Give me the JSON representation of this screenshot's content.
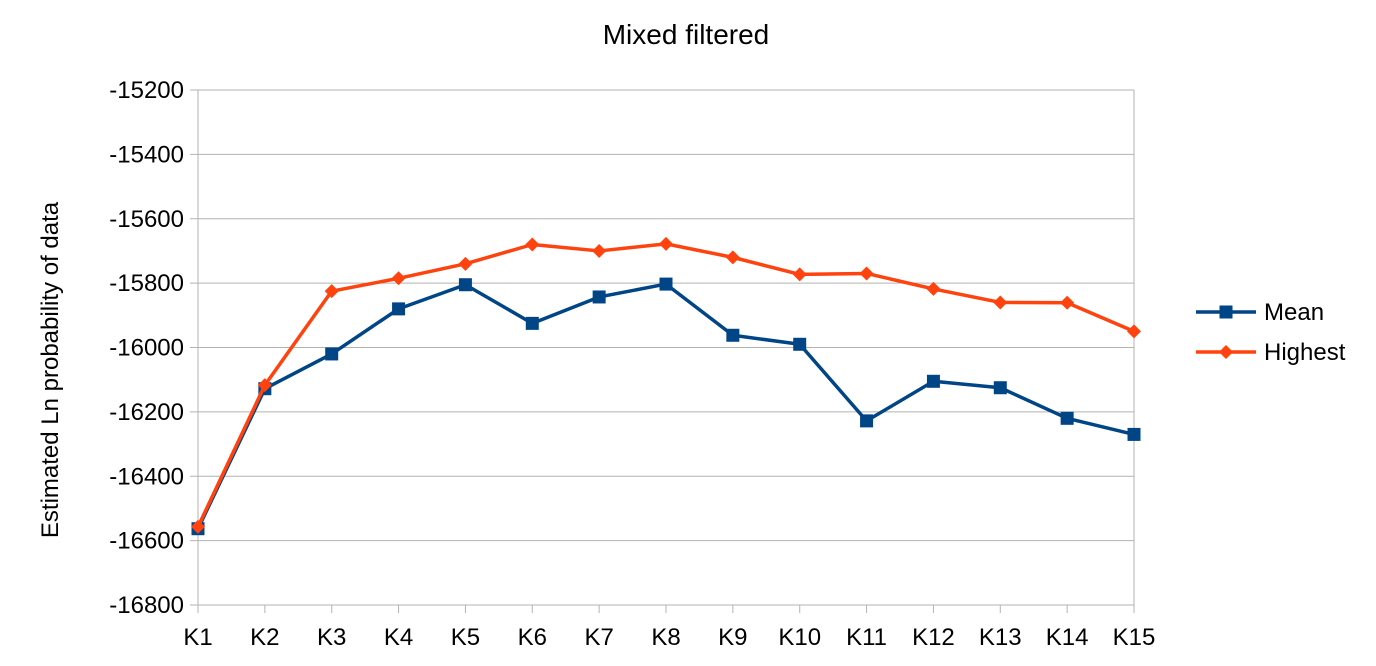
{
  "chart_data": {
    "type": "line",
    "title": "Mixed filtered",
    "xlabel": "",
    "ylabel": "Estimated Ln probability of data",
    "categories": [
      "K1",
      "K2",
      "K3",
      "K4",
      "K5",
      "K6",
      "K7",
      "K8",
      "K9",
      "K10",
      "K11",
      "K12",
      "K13",
      "K14",
      "K15"
    ],
    "ylim": [
      -16800,
      -15200
    ],
    "yticks": [
      -15200,
      -15400,
      -15600,
      -15800,
      -16000,
      -16200,
      -16400,
      -16600,
      -16800
    ],
    "ytick_labels": [
      "-15200",
      "-15400",
      "-15600",
      "-15800",
      "-16000",
      "-16200",
      "-16400",
      "-16600",
      "-16800"
    ],
    "grid": true,
    "legend_position": "right",
    "series": [
      {
        "name": "Mean",
        "color": "#004586",
        "marker": "square",
        "values": [
          -16563,
          -16128,
          -16020,
          -15880,
          -15805,
          -15925,
          -15843,
          -15803,
          -15962,
          -15990,
          -16228,
          -16105,
          -16125,
          -16220,
          -16270
        ]
      },
      {
        "name": "Highest",
        "color": "#ff420e",
        "marker": "diamond",
        "values": [
          -16557,
          -16117,
          -15825,
          -15785,
          -15740,
          -15680,
          -15700,
          -15678,
          -15720,
          -15773,
          -15770,
          -15818,
          -15860,
          -15861,
          -15950
        ]
      }
    ]
  }
}
